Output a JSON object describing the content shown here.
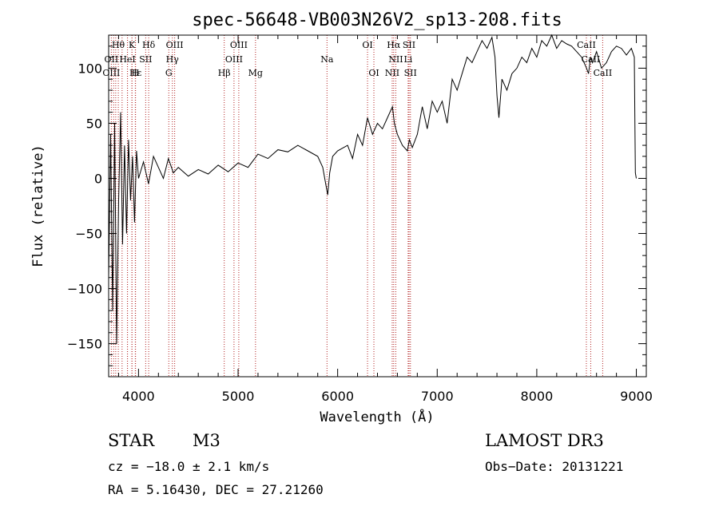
{
  "chart_data": {
    "type": "line",
    "title": "spec-56648-VB003N26V2_sp13-208.fits",
    "xlabel": "Wavelength (Å)",
    "ylabel": "Flux (relative)",
    "xlim": [
      3700,
      9100
    ],
    "ylim": [
      -180,
      130
    ],
    "xticks": [
      4000,
      5000,
      6000,
      7000,
      8000,
      9000
    ],
    "yticks": [
      -150,
      -100,
      -50,
      0,
      50,
      100
    ],
    "series": [
      {
        "name": "flux",
        "x": [
          3700,
          3720,
          3740,
          3760,
          3780,
          3800,
          3820,
          3840,
          3860,
          3880,
          3900,
          3920,
          3940,
          3960,
          3980,
          4000,
          4050,
          4100,
          4150,
          4200,
          4250,
          4300,
          4350,
          4400,
          4500,
          4600,
          4700,
          4800,
          4900,
          5000,
          5100,
          5200,
          5300,
          5400,
          5500,
          5600,
          5700,
          5800,
          5850,
          5880,
          5900,
          5920,
          5950,
          6000,
          6100,
          6150,
          6200,
          6250,
          6300,
          6350,
          6400,
          6450,
          6500,
          6550,
          6570,
          6600,
          6650,
          6700,
          6720,
          6750,
          6800,
          6850,
          6900,
          6950,
          7000,
          7050,
          7100,
          7150,
          7200,
          7250,
          7300,
          7350,
          7400,
          7450,
          7500,
          7550,
          7580,
          7600,
          7620,
          7650,
          7700,
          7750,
          7800,
          7850,
          7900,
          7950,
          8000,
          8050,
          8100,
          8150,
          8200,
          8250,
          8300,
          8350,
          8400,
          8450,
          8500,
          8520,
          8540,
          8560,
          8600,
          8650,
          8700,
          8750,
          8800,
          8850,
          8900,
          8950,
          8980,
          8990,
          9000
        ],
        "y": [
          -90,
          40,
          -120,
          50,
          -150,
          -20,
          60,
          -60,
          30,
          -50,
          35,
          -20,
          20,
          -40,
          25,
          0,
          15,
          -5,
          20,
          10,
          0,
          18,
          5,
          10,
          2,
          8,
          4,
          12,
          6,
          14,
          10,
          22,
          18,
          26,
          24,
          30,
          25,
          20,
          10,
          -5,
          -15,
          5,
          20,
          25,
          30,
          18,
          40,
          30,
          55,
          40,
          50,
          45,
          55,
          65,
          50,
          40,
          30,
          25,
          35,
          28,
          40,
          65,
          45,
          70,
          60,
          70,
          50,
          90,
          80,
          95,
          110,
          105,
          115,
          125,
          118,
          128,
          110,
          75,
          55,
          90,
          80,
          95,
          100,
          110,
          105,
          118,
          110,
          125,
          120,
          130,
          118,
          125,
          122,
          120,
          115,
          110,
          100,
          95,
          110,
          105,
          115,
          100,
          105,
          115,
          120,
          118,
          112,
          118,
          110,
          5,
          0
        ]
      }
    ],
    "line_markers": [
      {
        "label": "Hθ",
        "x": 3797,
        "row": 1
      },
      {
        "label": "K",
        "x": 3934,
        "row": 1
      },
      {
        "label": "Hδ",
        "x": 4102,
        "row": 1
      },
      {
        "label": "OIII",
        "x": 4363,
        "row": 1
      },
      {
        "label": "OIII",
        "x": 5007,
        "row": 1
      },
      {
        "label": "OI",
        "x": 6300,
        "row": 1
      },
      {
        "label": "Hα",
        "x": 6563,
        "row": 1
      },
      {
        "label": "SII",
        "x": 6717,
        "row": 1
      },
      {
        "label": "CaII",
        "x": 8498,
        "row": 1
      },
      {
        "label": "OII",
        "x": 3727,
        "row": 2
      },
      {
        "label": "HeI",
        "x": 3889,
        "row": 2
      },
      {
        "label": "SII",
        "x": 4072,
        "row": 2
      },
      {
        "label": "Hγ",
        "x": 4340,
        "row": 2
      },
      {
        "label": "OIII",
        "x": 4959,
        "row": 2
      },
      {
        "label": "Na",
        "x": 5893,
        "row": 2
      },
      {
        "label": "NII",
        "x": 6584,
        "row": 2
      },
      {
        "label": "Li",
        "x": 6708,
        "row": 2
      },
      {
        "label": "CaII",
        "x": 8542,
        "row": 2
      },
      {
        "label": "OIII",
        "x": 3727,
        "row": 3
      },
      {
        "label": "Hε",
        "x": 3970,
        "row": 3
      },
      {
        "label": "H",
        "x": 3968,
        "row": 3
      },
      {
        "label": "G",
        "x": 4304,
        "row": 3
      },
      {
        "label": "Hβ",
        "x": 4861,
        "row": 3
      },
      {
        "label": "Mg",
        "x": 5175,
        "row": 3
      },
      {
        "label": "OI",
        "x": 6364,
        "row": 3
      },
      {
        "label": "NII",
        "x": 6548,
        "row": 3
      },
      {
        "label": "SII",
        "x": 6731,
        "row": 3
      },
      {
        "label": "CaII",
        "x": 8662,
        "row": 3
      }
    ],
    "extra_marker_lines": [
      3835,
      3750,
      3771,
      3889,
      3934
    ]
  },
  "info": {
    "class_label": "STAR",
    "subclass": "M3",
    "survey": "LAMOST DR3",
    "cz": "cz = −18.0 ± 2.1 km/s",
    "obs_date": "Obs−Date: 20131221",
    "coords": "RA =   5.16430, DEC =  27.21260"
  },
  "colors": {
    "marker": "#b22222",
    "axis": "#000000",
    "line": "#000000"
  }
}
